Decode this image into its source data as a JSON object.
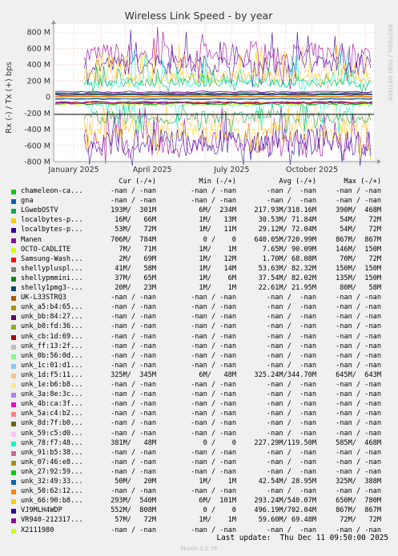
{
  "chart_data": {
    "type": "line",
    "title": "Wireless Link Speed - by year",
    "ylabel": "Rx (-) / Tx (+) bps",
    "ylim": [
      -800000000,
      900000000
    ],
    "yticks": [
      {
        "v": 800000000,
        "label": "800 M"
      },
      {
        "v": 600000000,
        "label": "600 M"
      },
      {
        "v": 400000000,
        "label": "400 M"
      },
      {
        "v": 200000000,
        "label": "200 M"
      },
      {
        "v": 0,
        "label": "0"
      },
      {
        "v": -200000000,
        "label": "-200 M"
      },
      {
        "v": -400000000,
        "label": "-400 M"
      },
      {
        "v": -600000000,
        "label": "-600 M"
      },
      {
        "v": -800000000,
        "label": "-800 M"
      }
    ],
    "xrange": [
      "2024-12-09",
      "2025-12-11"
    ],
    "xticks": [
      {
        "date": "2025-01-01",
        "label": "January 2025"
      },
      {
        "date": "2025-04-01",
        "label": "April 2025"
      },
      {
        "date": "2025-07-01",
        "label": "July 2025"
      },
      {
        "date": "2025-10-01",
        "label": "October 2025"
      }
    ],
    "grid": true,
    "side_label": "RRDTOOL / TOBI OETIKER",
    "series_approx": [
      {
        "name": "Manen",
        "tx": 640050000,
        "rx": 720990000,
        "max_tx": 867000000,
        "max_rx": 867000000
      },
      {
        "name": "VJ9MLH4WDP",
        "tx": 496190000,
        "rx": 702040000,
        "max_tx": 867000000,
        "max_rx": 867000000
      },
      {
        "name": "unk_1d:f5:11...",
        "tx": 325240000,
        "rx": 344700000,
        "max_tx": 645000000,
        "max_rx": 643000000
      },
      {
        "name": "unk_66:90:b8...",
        "tx": 293240000,
        "rx": 540070000,
        "max_tx": 650000000,
        "max_rx": 780000000
      },
      {
        "name": "unk_78:f7:48...",
        "tx": 227290000,
        "rx": 119500000,
        "max_tx": 585000000,
        "max_rx": 468000000
      },
      {
        "name": "LGwebOSTV",
        "tx": 217930000,
        "rx": 318160000,
        "max_tx": 390000000,
        "max_rx": 468000000
      }
    ]
  },
  "legend": {
    "headers": [
      "Cur (-/+)",
      "Min (-/+)",
      "Avg (-/+)",
      "Max (-/+)"
    ],
    "rows": [
      {
        "color": "#00cc00",
        "name": "chameleon-ca...",
        "cur": "-nan / -nan",
        "min": "-nan / -nan",
        "avg": "-nan /  -nan",
        "max": "-nan / -nan"
      },
      {
        "color": "#0066b3",
        "name": "gna",
        "cur": "-nan / -nan",
        "min": "-nan / -nan",
        "avg": "-nan /  -nan",
        "max": "-nan / -nan"
      },
      {
        "color": "#00aa55",
        "name": "LGwebOSTV",
        "cur": "193M/  301M",
        "min": "6M/  234M",
        "avg": "217.93M/318.16M",
        "max": "390M/  468M"
      },
      {
        "color": "#ffcc00",
        "name": "localbytes-p...",
        "cur": "16M/   66M",
        "min": "1M/   13M",
        "avg": "30.53M/ 71.84M",
        "max": "54M/   72M"
      },
      {
        "color": "#330099",
        "name": "localbytes-p...",
        "cur": "53M/   72M",
        "min": "1M/   11M",
        "avg": "29.12M/ 72.04M",
        "max": "54M/   72M"
      },
      {
        "color": "#990099",
        "name": "Manen",
        "cur": "706M/  784M",
        "min": "0 /    0",
        "avg": "640.05M/720.99M",
        "max": "867M/  867M"
      },
      {
        "color": "#ccff00",
        "name": "OCTO-CADLITE",
        "cur": "7M/   71M",
        "min": "1M/    1M",
        "avg": "7.65M/ 90.09M",
        "max": "146M/  150M"
      },
      {
        "color": "#ff0000",
        "name": "Samsung-Wash...",
        "cur": "2M/   69M",
        "min": "1M/   12M",
        "avg": "1.70M/ 68.08M",
        "max": "70M/   72M"
      },
      {
        "color": "#808080",
        "name": "shellypluspl...",
        "cur": "41M/   58M",
        "min": "1M/   14M",
        "avg": "53.63M/ 82.32M",
        "max": "150M/  150M"
      },
      {
        "color": "#008f00",
        "name": "shellypmmini...",
        "cur": "37M/   65M",
        "min": "1M/    6M",
        "avg": "37.54M/ 82.02M",
        "max": "135M/  150M"
      },
      {
        "color": "#00487d",
        "name": "shelly1pmg3-...",
        "cur": "20M/   23M",
        "min": "1M/    1M",
        "avg": "22.61M/ 21.95M",
        "max": "80M/   58M"
      },
      {
        "color": "#b35a00",
        "name": "UK-L33STRQ3",
        "cur": "-nan / -nan",
        "min": "-nan / -nan",
        "avg": "-nan /  -nan",
        "max": "-nan / -nan"
      },
      {
        "color": "#b38f00",
        "name": "unk_a5:b4:65...",
        "cur": "-nan / -nan",
        "min": "-nan / -nan",
        "avg": "-nan /  -nan",
        "max": "-nan / -nan"
      },
      {
        "color": "#6b006b",
        "name": "unk_bb:84:27...",
        "cur": "-nan / -nan",
        "min": "-nan / -nan",
        "avg": "-nan /  -nan",
        "max": "-nan / -nan"
      },
      {
        "color": "#8fb300",
        "name": "unk_b0:fd:36...",
        "cur": "-nan / -nan",
        "min": "-nan / -nan",
        "avg": "-nan /  -nan",
        "max": "-nan / -nan"
      },
      {
        "color": "#b30000",
        "name": "unk_cb:1d:69...",
        "cur": "-nan / -nan",
        "min": "-nan / -nan",
        "avg": "-nan /  -nan",
        "max": "-nan / -nan"
      },
      {
        "color": "#bebebe",
        "name": "unk_ff:13:2f...",
        "cur": "-nan / -nan",
        "min": "-nan / -nan",
        "avg": "-nan /  -nan",
        "max": "-nan / -nan"
      },
      {
        "color": "#80ff80",
        "name": "unk_0b:56:0d...",
        "cur": "-nan / -nan",
        "min": "-nan / -nan",
        "avg": "-nan /  -nan",
        "max": "-nan / -nan"
      },
      {
        "color": "#80c9ff",
        "name": "unk_1c:01:d1...",
        "cur": "-nan / -nan",
        "min": "-nan / -nan",
        "avg": "-nan /  -nan",
        "max": "-nan / -nan"
      },
      {
        "color": "#ffc080",
        "name": "unk_1d:f5:11...",
        "cur": "325M/  345M",
        "min": "6M/   48M",
        "avg": "325.24M/344.70M",
        "max": "645M/  643M"
      },
      {
        "color": "#ffe680",
        "name": "unk_1e:b6:b8...",
        "cur": "-nan / -nan",
        "min": "-nan / -nan",
        "avg": "-nan /  -nan",
        "max": "-nan / -nan"
      },
      {
        "color": "#aa80ff",
        "name": "unk_3a:8e:3c...",
        "cur": "-nan / -nan",
        "min": "-nan / -nan",
        "avg": "-nan /  -nan",
        "max": "-nan / -nan"
      },
      {
        "color": "#ee00cc",
        "name": "unk_4b:ca:3f...",
        "cur": "-nan / -nan",
        "min": "-nan / -nan",
        "avg": "-nan /  -nan",
        "max": "-nan / -nan"
      },
      {
        "color": "#ff8080",
        "name": "unk_5a:c4:b2...",
        "cur": "-nan / -nan",
        "min": "-nan / -nan",
        "avg": "-nan /  -nan",
        "max": "-nan / -nan"
      },
      {
        "color": "#666600",
        "name": "unk_8d:7f:b0...",
        "cur": "-nan / -nan",
        "min": "-nan / -nan",
        "avg": "-nan /  -nan",
        "max": "-nan / -nan"
      },
      {
        "color": "#ffbfff",
        "name": "unk_59:c5:d0...",
        "cur": "-nan / -nan",
        "min": "-nan / -nan",
        "avg": "-nan /  -nan",
        "max": "-nan / -nan"
      },
      {
        "color": "#00ffcc",
        "name": "unk_78:f7:48...",
        "cur": "381M/   48M",
        "min": "0 /    0",
        "avg": "227.29M/119.50M",
        "max": "585M/  468M"
      },
      {
        "color": "#cc6699",
        "name": "unk_91:b5:38...",
        "cur": "-nan / -nan",
        "min": "-nan / -nan",
        "avg": "-nan /  -nan",
        "max": "-nan / -nan"
      },
      {
        "color": "#999900",
        "name": "unk_07:46:e8...",
        "cur": "-nan / -nan",
        "min": "-nan / -nan",
        "avg": "-nan /  -nan",
        "max": "-nan / -nan"
      },
      {
        "color": "#00cc00",
        "name": "unk_27:92:59...",
        "cur": "-nan / -nan",
        "min": "-nan / -nan",
        "avg": "-nan /  -nan",
        "max": "-nan / -nan"
      },
      {
        "color": "#0066b3",
        "name": "unk_32:49:33...",
        "cur": "50M/   20M",
        "min": "1M/    1M",
        "avg": "42.54M/ 28.95M",
        "max": "325M/  388M"
      },
      {
        "color": "#ff8000",
        "name": "unk_50:62:12...",
        "cur": "-nan / -nan",
        "min": "-nan / -nan",
        "avg": "-nan /  -nan",
        "max": "-nan / -nan"
      },
      {
        "color": "#ffcc00",
        "name": "unk_66:90:b8...",
        "cur": "293M/  540M",
        "min": "6M/  101M",
        "avg": "293.24M/540.07M",
        "max": "650M/  780M"
      },
      {
        "color": "#330099",
        "name": "VJ9MLH4WDP",
        "cur": "552M/  808M",
        "min": "0 /    0",
        "avg": "496.19M/702.04M",
        "max": "867M/  867M"
      },
      {
        "color": "#990099",
        "name": "VR940-212317...",
        "cur": "57M/   72M",
        "min": "1M/    1M",
        "avg": "59.60M/ 69.48M",
        "max": "72M/   72M"
      },
      {
        "color": "#ccff00",
        "name": "X2111980",
        "cur": "-nan / -nan",
        "min": "-nan / -nan",
        "avg": "-nan /  -nan",
        "max": "-nan / -nan"
      }
    ]
  },
  "footer": {
    "last_update": "Last update:  Thu Dec 11 09:50:00 2025",
    "munin": "Munin 2.0.76"
  }
}
